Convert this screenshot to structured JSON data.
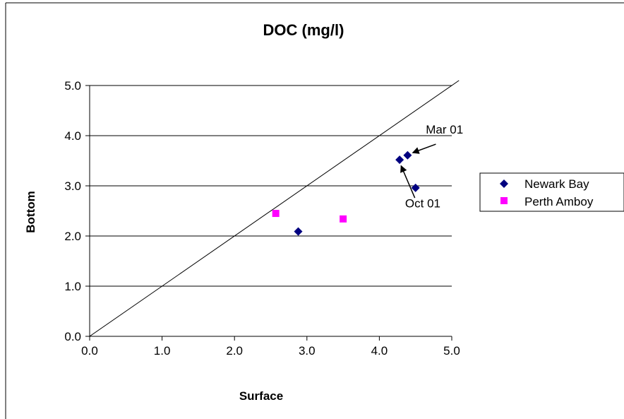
{
  "chart_data": {
    "type": "scatter",
    "title": "DOC (mg/l)",
    "xlabel": "Surface",
    "ylabel": "Bottom",
    "xlim": [
      0,
      5
    ],
    "ylim": [
      0,
      5
    ],
    "x_ticks": [
      "0.0",
      "1.0",
      "2.0",
      "3.0",
      "4.0",
      "5.0"
    ],
    "y_ticks": [
      "0.0",
      "1.0",
      "2.0",
      "3.0",
      "4.0",
      "5.0"
    ],
    "grid": "horizontal",
    "legend_position": "right",
    "reference_line": {
      "from": [
        0,
        0
      ],
      "to": [
        5.1,
        5.1
      ]
    },
    "series": [
      {
        "name": "Newark Bay",
        "marker": "diamond",
        "color": "#000080",
        "points": [
          [
            2.88,
            2.09
          ],
          [
            4.28,
            3.52
          ],
          [
            4.39,
            3.61
          ],
          [
            4.5,
            2.96
          ]
        ]
      },
      {
        "name": "Perth Amboy",
        "marker": "square",
        "color": "#FF00FF",
        "points": [
          [
            2.57,
            2.45
          ],
          [
            3.5,
            2.34
          ]
        ]
      }
    ],
    "annotations": [
      {
        "text": "Mar 01",
        "label_at": [
          4.9,
          4.04
        ],
        "arrow_from": [
          4.78,
          3.83
        ],
        "arrow_to": [
          4.46,
          3.66
        ]
      },
      {
        "text": "Oct 01",
        "label_at": [
          4.6,
          2.57
        ],
        "arrow_from": [
          4.49,
          2.76
        ],
        "arrow_to": [
          4.3,
          3.4
        ]
      }
    ]
  }
}
